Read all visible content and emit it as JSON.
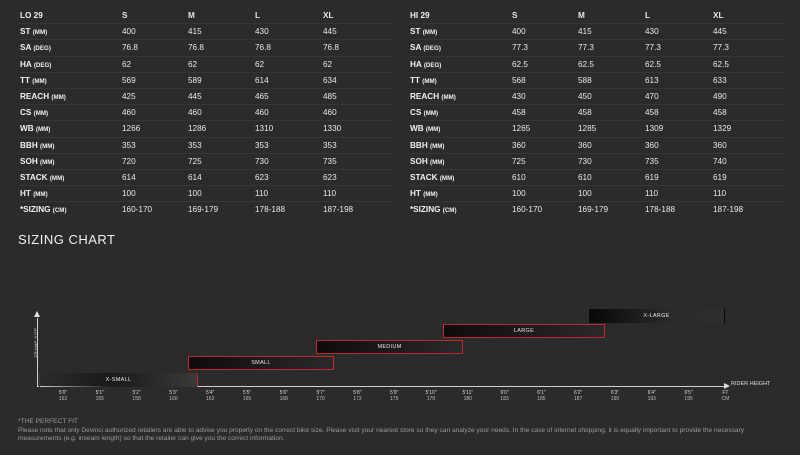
{
  "lo": {
    "header": [
      "LO 29",
      "S",
      "M",
      "L",
      "XL"
    ],
    "rows": [
      {
        "label": "ST",
        "unit": "(MM)",
        "values": [
          "400",
          "415",
          "430",
          "445"
        ]
      },
      {
        "label": "SA",
        "unit": "(DEG)",
        "values": [
          "76.8",
          "76.8",
          "76.8",
          "76.8"
        ]
      },
      {
        "label": "HA",
        "unit": "(DEG)",
        "values": [
          "62",
          "62",
          "62",
          "62"
        ]
      },
      {
        "label": "TT",
        "unit": "(MM)",
        "values": [
          "569",
          "589",
          "614",
          "634"
        ]
      },
      {
        "label": "REACH",
        "unit": "(MM)",
        "values": [
          "425",
          "445",
          "465",
          "485"
        ]
      },
      {
        "label": "CS",
        "unit": "(MM)",
        "values": [
          "460",
          "460",
          "460",
          "460"
        ]
      },
      {
        "label": "WB",
        "unit": "(MM)",
        "values": [
          "1266",
          "1286",
          "1310",
          "1330"
        ]
      },
      {
        "label": "BBH",
        "unit": "(MM)",
        "values": [
          "353",
          "353",
          "353",
          "353"
        ]
      },
      {
        "label": "SOH",
        "unit": "(MM)",
        "values": [
          "720",
          "725",
          "730",
          "735"
        ]
      },
      {
        "label": "STACK",
        "unit": "(MM)",
        "values": [
          "614",
          "614",
          "623",
          "623"
        ]
      },
      {
        "label": "HT",
        "unit": "(MM)",
        "values": [
          "100",
          "100",
          "110",
          "110"
        ]
      },
      {
        "label": "*SIZING",
        "unit": "(CM)",
        "values": [
          "160-170",
          "169-179",
          "178-188",
          "187-198"
        ]
      }
    ]
  },
  "hi": {
    "header": [
      "HI 29",
      "S",
      "M",
      "L",
      "XL"
    ],
    "rows": [
      {
        "label": "ST",
        "unit": "(MM)",
        "values": [
          "400",
          "415",
          "430",
          "445"
        ]
      },
      {
        "label": "SA",
        "unit": "(DEG)",
        "values": [
          "77.3",
          "77.3",
          "77.3",
          "77.3"
        ]
      },
      {
        "label": "HA",
        "unit": "(DEG)",
        "values": [
          "62.5",
          "62.5",
          "62.5",
          "62.5"
        ]
      },
      {
        "label": "TT",
        "unit": "(MM)",
        "values": [
          "568",
          "588",
          "613",
          "633"
        ]
      },
      {
        "label": "REACH",
        "unit": "(MM)",
        "values": [
          "430",
          "450",
          "470",
          "490"
        ]
      },
      {
        "label": "CS",
        "unit": "(MM)",
        "values": [
          "458",
          "458",
          "458",
          "458"
        ]
      },
      {
        "label": "WB",
        "unit": "(MM)",
        "values": [
          "1265",
          "1285",
          "1309",
          "1329"
        ]
      },
      {
        "label": "BBH",
        "unit": "(MM)",
        "values": [
          "360",
          "360",
          "360",
          "360"
        ]
      },
      {
        "label": "SOH",
        "unit": "(MM)",
        "values": [
          "725",
          "730",
          "735",
          "740"
        ]
      },
      {
        "label": "STACK",
        "unit": "(MM)",
        "values": [
          "610",
          "610",
          "619",
          "619"
        ]
      },
      {
        "label": "HT",
        "unit": "(MM)",
        "values": [
          "100",
          "100",
          "110",
          "110"
        ]
      },
      {
        "label": "*SIZING",
        "unit": "(CM)",
        "values": [
          "160-170",
          "169-179",
          "178-188",
          "187-198"
        ]
      }
    ]
  },
  "sizing_chart": {
    "title": "SIZING CHART",
    "y_label": "FRAME SIZE",
    "x_label": "RIDER HEIGHT",
    "bars": {
      "xs": "X-SMALL",
      "s": "SMALL",
      "m": "MEDIUM",
      "l": "LARGE",
      "xl": "X-LARGE"
    },
    "ticks": [
      {
        "ft": "5'0\"",
        "cm": "153"
      },
      {
        "ft": "5'1\"",
        "cm": "155"
      },
      {
        "ft": "5'2\"",
        "cm": "158"
      },
      {
        "ft": "5'3\"",
        "cm": "160"
      },
      {
        "ft": "5'4\"",
        "cm": "163"
      },
      {
        "ft": "5'5\"",
        "cm": "165"
      },
      {
        "ft": "5'6\"",
        "cm": "168"
      },
      {
        "ft": "5'7\"",
        "cm": "170"
      },
      {
        "ft": "5'8\"",
        "cm": "173"
      },
      {
        "ft": "5'9\"",
        "cm": "175"
      },
      {
        "ft": "5'10\"",
        "cm": "178"
      },
      {
        "ft": "5'11\"",
        "cm": "180"
      },
      {
        "ft": "6'0\"",
        "cm": "183"
      },
      {
        "ft": "6'1\"",
        "cm": "185"
      },
      {
        "ft": "6'2\"",
        "cm": "187"
      },
      {
        "ft": "6'3\"",
        "cm": "190"
      },
      {
        "ft": "6'4\"",
        "cm": "193"
      },
      {
        "ft": "6'5\"",
        "cm": "195"
      },
      {
        "ft": "FT",
        "cm": "CM"
      }
    ]
  },
  "note": {
    "title": "*THE PERFECT FIT",
    "text": "Please note that only Devinci authorized retailers are able to advise you properly on the correct bike size. Please visit your nearest store so they can analyze your needs. In the case of internet shopping, it is equally important to provide the necessary measurements (e.g. inseam length) so that the retailer can give you the correct information."
  }
}
